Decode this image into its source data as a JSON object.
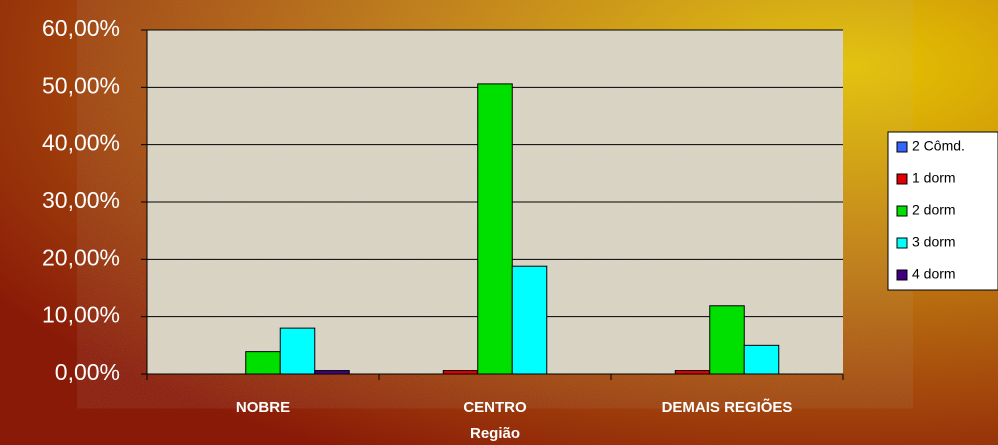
{
  "chart_data": {
    "type": "bar",
    "x_label": "Região",
    "categories": [
      "NOBRE",
      "CENTRO",
      "DEMAIS REGIÕES"
    ],
    "series": [
      {
        "name": "2 Cômd.",
        "color": "#3366ff",
        "values": [
          0,
          0,
          0
        ]
      },
      {
        "name": "1 dorm",
        "color": "#e00000",
        "values": [
          0,
          0.6,
          0.6
        ]
      },
      {
        "name": "2 dorm",
        "color": "#00e000",
        "values": [
          3.9,
          50.6,
          11.9
        ]
      },
      {
        "name": "3 dorm",
        "color": "#00ffff",
        "values": [
          8.0,
          18.8,
          5.0
        ]
      },
      {
        "name": "4 dorm",
        "color": "#400080",
        "values": [
          0.6,
          0,
          0
        ]
      }
    ],
    "ylim": [
      0,
      60
    ],
    "yticks": [
      {
        "value": 0,
        "label": "0,00%"
      },
      {
        "value": 10,
        "label": "10,00%"
      },
      {
        "value": 20,
        "label": "20,00%"
      },
      {
        "value": 30,
        "label": "30,00%"
      },
      {
        "value": 40,
        "label": "40,00%"
      },
      {
        "value": 50,
        "label": "50,00%"
      },
      {
        "value": 60,
        "label": "60,00%"
      }
    ],
    "grid": true,
    "legend": "right"
  }
}
